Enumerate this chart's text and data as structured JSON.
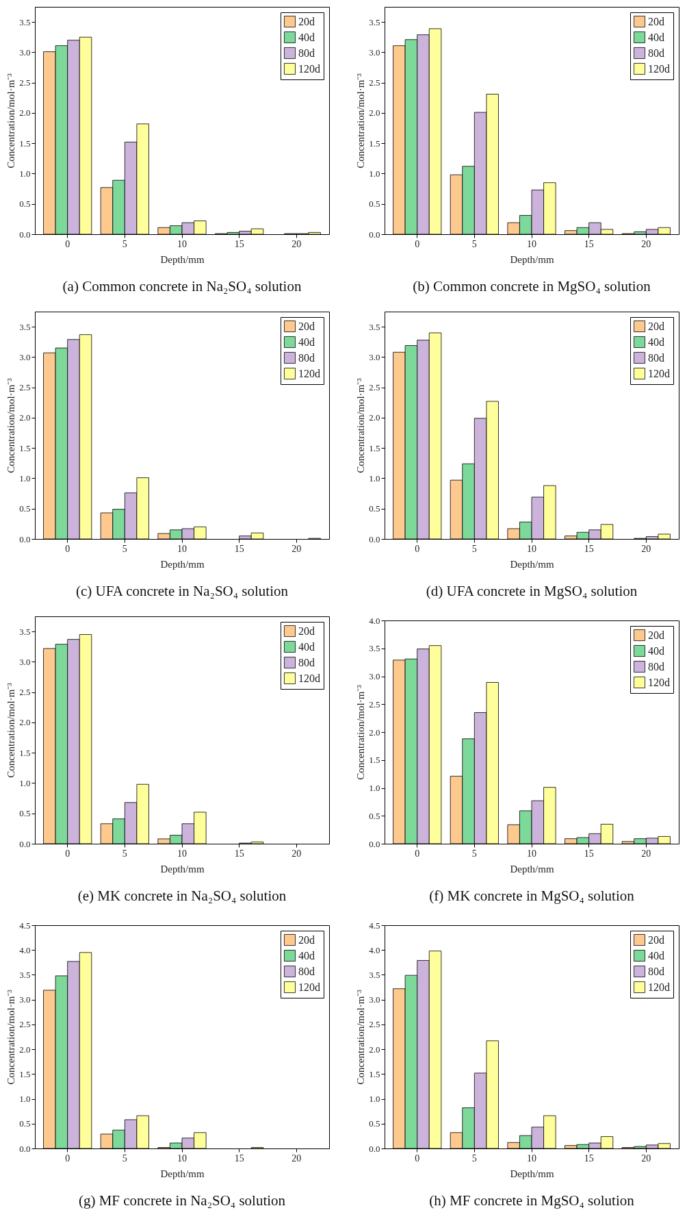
{
  "chart_data": [
    {
      "type": "bar",
      "title": "(a) Common concrete in Na₂SO₄ solution",
      "xlabel": "Depth/mm",
      "ylabel": "Concentration/mol·m⁻³",
      "categories": [
        "0",
        "5",
        "10",
        "15",
        "20"
      ],
      "legend": "top right",
      "ylim": [
        0,
        3.75
      ],
      "yticks": [
        {
          "value": 0,
          "label": "0.0"
        },
        {
          "value": 0.5,
          "label": "0.5"
        },
        {
          "value": 1,
          "label": "1.0"
        },
        {
          "value": 1.5,
          "label": "1.5"
        },
        {
          "value": 2,
          "label": "2.0"
        },
        {
          "value": 2.5,
          "label": "2.5"
        },
        {
          "value": 3,
          "label": "3.0"
        },
        {
          "value": 3.5,
          "label": "3.5"
        }
      ],
      "series": [
        {
          "name": "20d",
          "color": "#fdc98f",
          "values": [
            3.01,
            0.77,
            0.11,
            0.01,
            null
          ]
        },
        {
          "name": "40d",
          "color": "#7dd99a",
          "values": [
            3.11,
            0.89,
            0.14,
            0.03,
            0.01
          ]
        },
        {
          "name": "80d",
          "color": "#cbb3db",
          "values": [
            3.2,
            1.52,
            0.19,
            0.05,
            0.01
          ]
        },
        {
          "name": "120d",
          "color": "#fefe9a",
          "values": [
            3.25,
            1.82,
            0.22,
            0.09,
            0.03
          ]
        }
      ]
    },
    {
      "type": "bar",
      "title": "(b) Common concrete in MgSO₄ solution",
      "xlabel": "Depth/mm",
      "ylabel": "Concentration/mol·m⁻³",
      "categories": [
        "0",
        "5",
        "10",
        "15",
        "20"
      ],
      "legend": "top right",
      "ylim": [
        0,
        3.75
      ],
      "yticks": [
        {
          "value": 0,
          "label": "0.0"
        },
        {
          "value": 0.5,
          "label": "0.5"
        },
        {
          "value": 1,
          "label": "1.0"
        },
        {
          "value": 1.5,
          "label": "1.5"
        },
        {
          "value": 2,
          "label": "2.0"
        },
        {
          "value": 2.5,
          "label": "2.5"
        },
        {
          "value": 3,
          "label": "3.0"
        },
        {
          "value": 3.5,
          "label": "3.5"
        }
      ],
      "series": [
        {
          "name": "20d",
          "color": "#fdc98f",
          "values": [
            3.11,
            0.98,
            0.19,
            0.06,
            0.01
          ]
        },
        {
          "name": "40d",
          "color": "#7dd99a",
          "values": [
            3.21,
            1.12,
            0.31,
            0.11,
            0.04
          ]
        },
        {
          "name": "80d",
          "color": "#cbb3db",
          "values": [
            3.29,
            2.01,
            0.73,
            0.19,
            0.08
          ]
        },
        {
          "name": "120d",
          "color": "#fefe9a",
          "values": [
            3.39,
            2.31,
            0.85,
            0.08,
            0.11
          ]
        }
      ]
    },
    {
      "type": "bar",
      "title": "(c) UFA concrete in Na₂SO₄ solution",
      "xlabel": "Depth/mm",
      "ylabel": "Concentration/mol·m⁻³",
      "categories": [
        "0",
        "5",
        "10",
        "15",
        "20"
      ],
      "legend": "top right",
      "ylim": [
        0,
        3.75
      ],
      "yticks": [
        {
          "value": 0,
          "label": "0.0"
        },
        {
          "value": 0.5,
          "label": "0.5"
        },
        {
          "value": 1,
          "label": "1.0"
        },
        {
          "value": 1.5,
          "label": "1.5"
        },
        {
          "value": 2,
          "label": "2.0"
        },
        {
          "value": 2.5,
          "label": "2.5"
        },
        {
          "value": 3,
          "label": "3.0"
        },
        {
          "value": 3.5,
          "label": "3.5"
        }
      ],
      "series": [
        {
          "name": "20d",
          "color": "#fdc98f",
          "values": [
            3.07,
            0.43,
            0.09,
            null,
            null
          ]
        },
        {
          "name": "40d",
          "color": "#7dd99a",
          "values": [
            3.15,
            0.49,
            0.15,
            null,
            null
          ]
        },
        {
          "name": "80d",
          "color": "#cbb3db",
          "values": [
            3.29,
            0.76,
            0.17,
            0.05,
            null
          ]
        },
        {
          "name": "120d",
          "color": "#fefe9a",
          "values": [
            3.37,
            1.01,
            0.2,
            0.1,
            0.01
          ]
        }
      ]
    },
    {
      "type": "bar",
      "title": "(d) UFA concrete in MgSO₄ solution",
      "xlabel": "Depth/mm",
      "ylabel": "Concentration/mol·m⁻³",
      "categories": [
        "0",
        "5",
        "10",
        "15",
        "20"
      ],
      "legend": "top right",
      "ylim": [
        0,
        3.75
      ],
      "yticks": [
        {
          "value": 0,
          "label": "0.0"
        },
        {
          "value": 0.5,
          "label": "0.5"
        },
        {
          "value": 1,
          "label": "1.0"
        },
        {
          "value": 1.5,
          "label": "1.5"
        },
        {
          "value": 2,
          "label": "2.0"
        },
        {
          "value": 2.5,
          "label": "2.5"
        },
        {
          "value": 3,
          "label": "3.0"
        },
        {
          "value": 3.5,
          "label": "3.5"
        }
      ],
      "series": [
        {
          "name": "20d",
          "color": "#fdc98f",
          "values": [
            3.08,
            0.97,
            0.17,
            0.05,
            null
          ]
        },
        {
          "name": "40d",
          "color": "#7dd99a",
          "values": [
            3.19,
            1.24,
            0.28,
            0.11,
            0.01
          ]
        },
        {
          "name": "80d",
          "color": "#cbb3db",
          "values": [
            3.28,
            1.99,
            0.69,
            0.15,
            0.04
          ]
        },
        {
          "name": "120d",
          "color": "#fefe9a",
          "values": [
            3.4,
            2.27,
            0.88,
            0.24,
            0.08
          ]
        }
      ]
    },
    {
      "type": "bar",
      "title": "(e) MK concrete in Na₂SO₄ solution",
      "xlabel": "Depth/mm",
      "ylabel": "Concentration/mol·m⁻³",
      "categories": [
        "0",
        "5",
        "10",
        "15",
        "20"
      ],
      "legend": "top right",
      "ylim": [
        0,
        3.75
      ],
      "yticks": [
        {
          "value": 0,
          "label": "0.0"
        },
        {
          "value": 0.5,
          "label": "0.5"
        },
        {
          "value": 1,
          "label": "1.0"
        },
        {
          "value": 1.5,
          "label": "1.5"
        },
        {
          "value": 2,
          "label": "2.0"
        },
        {
          "value": 2.5,
          "label": "2.5"
        },
        {
          "value": 3,
          "label": "3.0"
        },
        {
          "value": 3.5,
          "label": "3.5"
        }
      ],
      "series": [
        {
          "name": "20d",
          "color": "#fdc98f",
          "values": [
            3.22,
            0.33,
            0.08,
            null,
            null
          ]
        },
        {
          "name": "40d",
          "color": "#7dd99a",
          "values": [
            3.29,
            0.41,
            0.14,
            null,
            null
          ]
        },
        {
          "name": "80d",
          "color": "#cbb3db",
          "values": [
            3.37,
            0.68,
            0.33,
            0.01,
            null
          ]
        },
        {
          "name": "120d",
          "color": "#fefe9a",
          "values": [
            3.45,
            0.98,
            0.52,
            0.03,
            null
          ]
        }
      ]
    },
    {
      "type": "bar",
      "title": "(f) MK concrete in MgSO₄ solution",
      "xlabel": "Depth/mm",
      "ylabel": "Concentration/mol·m⁻³",
      "categories": [
        "0",
        "5",
        "10",
        "15",
        "20"
      ],
      "legend": "top right",
      "ylim": [
        0,
        4
      ],
      "yticks": [
        {
          "value": 0,
          "label": "0.0"
        },
        {
          "value": 0.5,
          "label": "0.5"
        },
        {
          "value": 1,
          "label": "1.0"
        },
        {
          "value": 1.5,
          "label": "1.5"
        },
        {
          "value": 2,
          "label": "2.0"
        },
        {
          "value": 2.5,
          "label": "2.5"
        },
        {
          "value": 3,
          "label": "3.0"
        },
        {
          "value": 3.5,
          "label": "3.5"
        },
        {
          "value": 4,
          "label": "4.0"
        }
      ],
      "series": [
        {
          "name": "20d",
          "color": "#fdc98f",
          "values": [
            3.29,
            1.21,
            0.34,
            0.09,
            0.04
          ]
        },
        {
          "name": "40d",
          "color": "#7dd99a",
          "values": [
            3.31,
            1.88,
            0.59,
            0.11,
            0.09
          ]
        },
        {
          "name": "80d",
          "color": "#cbb3db",
          "values": [
            3.49,
            2.35,
            0.77,
            0.18,
            0.1
          ]
        },
        {
          "name": "120d",
          "color": "#fefe9a",
          "values": [
            3.55,
            2.89,
            1.01,
            0.35,
            0.13
          ]
        }
      ]
    },
    {
      "type": "bar",
      "title": "(g) MF concrete in Na₂SO₄ solution",
      "xlabel": "Depth/mm",
      "ylabel": "Concentration/mol·m⁻³",
      "categories": [
        "0",
        "5",
        "10",
        "15",
        "20"
      ],
      "legend": "top right",
      "ylim": [
        0,
        4.5
      ],
      "yticks": [
        {
          "value": 0,
          "label": "0.0"
        },
        {
          "value": 0.5,
          "label": "0.5"
        },
        {
          "value": 1,
          "label": "1.0"
        },
        {
          "value": 1.5,
          "label": "1.5"
        },
        {
          "value": 2,
          "label": "2.0"
        },
        {
          "value": 2.5,
          "label": "2.5"
        },
        {
          "value": 3,
          "label": "3.0"
        },
        {
          "value": 3.5,
          "label": "3.5"
        },
        {
          "value": 4,
          "label": "4.0"
        },
        {
          "value": 4.5,
          "label": "4.5"
        }
      ],
      "series": [
        {
          "name": "20d",
          "color": "#fdc98f",
          "values": [
            3.19,
            0.29,
            0.02,
            null,
            null
          ]
        },
        {
          "name": "40d",
          "color": "#7dd99a",
          "values": [
            3.48,
            0.37,
            0.11,
            null,
            null
          ]
        },
        {
          "name": "80d",
          "color": "#cbb3db",
          "values": [
            3.77,
            0.58,
            0.21,
            null,
            null
          ]
        },
        {
          "name": "120d",
          "color": "#fefe9a",
          "values": [
            3.95,
            0.66,
            0.32,
            0.02,
            null
          ]
        }
      ]
    },
    {
      "type": "bar",
      "title": "(h) MF concrete in MgSO₄ solution",
      "xlabel": "Depth/mm",
      "ylabel": "Concentration/mol·m⁻³",
      "categories": [
        "0",
        "5",
        "10",
        "15",
        "20"
      ],
      "legend": "top right",
      "ylim": [
        0,
        4.5
      ],
      "yticks": [
        {
          "value": 0,
          "label": "0.0"
        },
        {
          "value": 0.5,
          "label": "0.5"
        },
        {
          "value": 1,
          "label": "1.0"
        },
        {
          "value": 1.5,
          "label": "1.5"
        },
        {
          "value": 2,
          "label": "2.0"
        },
        {
          "value": 2.5,
          "label": "2.5"
        },
        {
          "value": 3,
          "label": "3.0"
        },
        {
          "value": 3.5,
          "label": "3.5"
        },
        {
          "value": 4,
          "label": "4.0"
        },
        {
          "value": 4.5,
          "label": "4.5"
        }
      ],
      "series": [
        {
          "name": "20d",
          "color": "#fdc98f",
          "values": [
            3.22,
            0.32,
            0.12,
            0.06,
            0.02
          ]
        },
        {
          "name": "40d",
          "color": "#7dd99a",
          "values": [
            3.49,
            0.82,
            0.26,
            0.08,
            0.04
          ]
        },
        {
          "name": "80d",
          "color": "#cbb3db",
          "values": [
            3.79,
            1.52,
            0.43,
            0.11,
            0.07
          ]
        },
        {
          "name": "120d",
          "color": "#fefe9a",
          "values": [
            3.98,
            2.17,
            0.66,
            0.24,
            0.1
          ]
        }
      ]
    }
  ]
}
